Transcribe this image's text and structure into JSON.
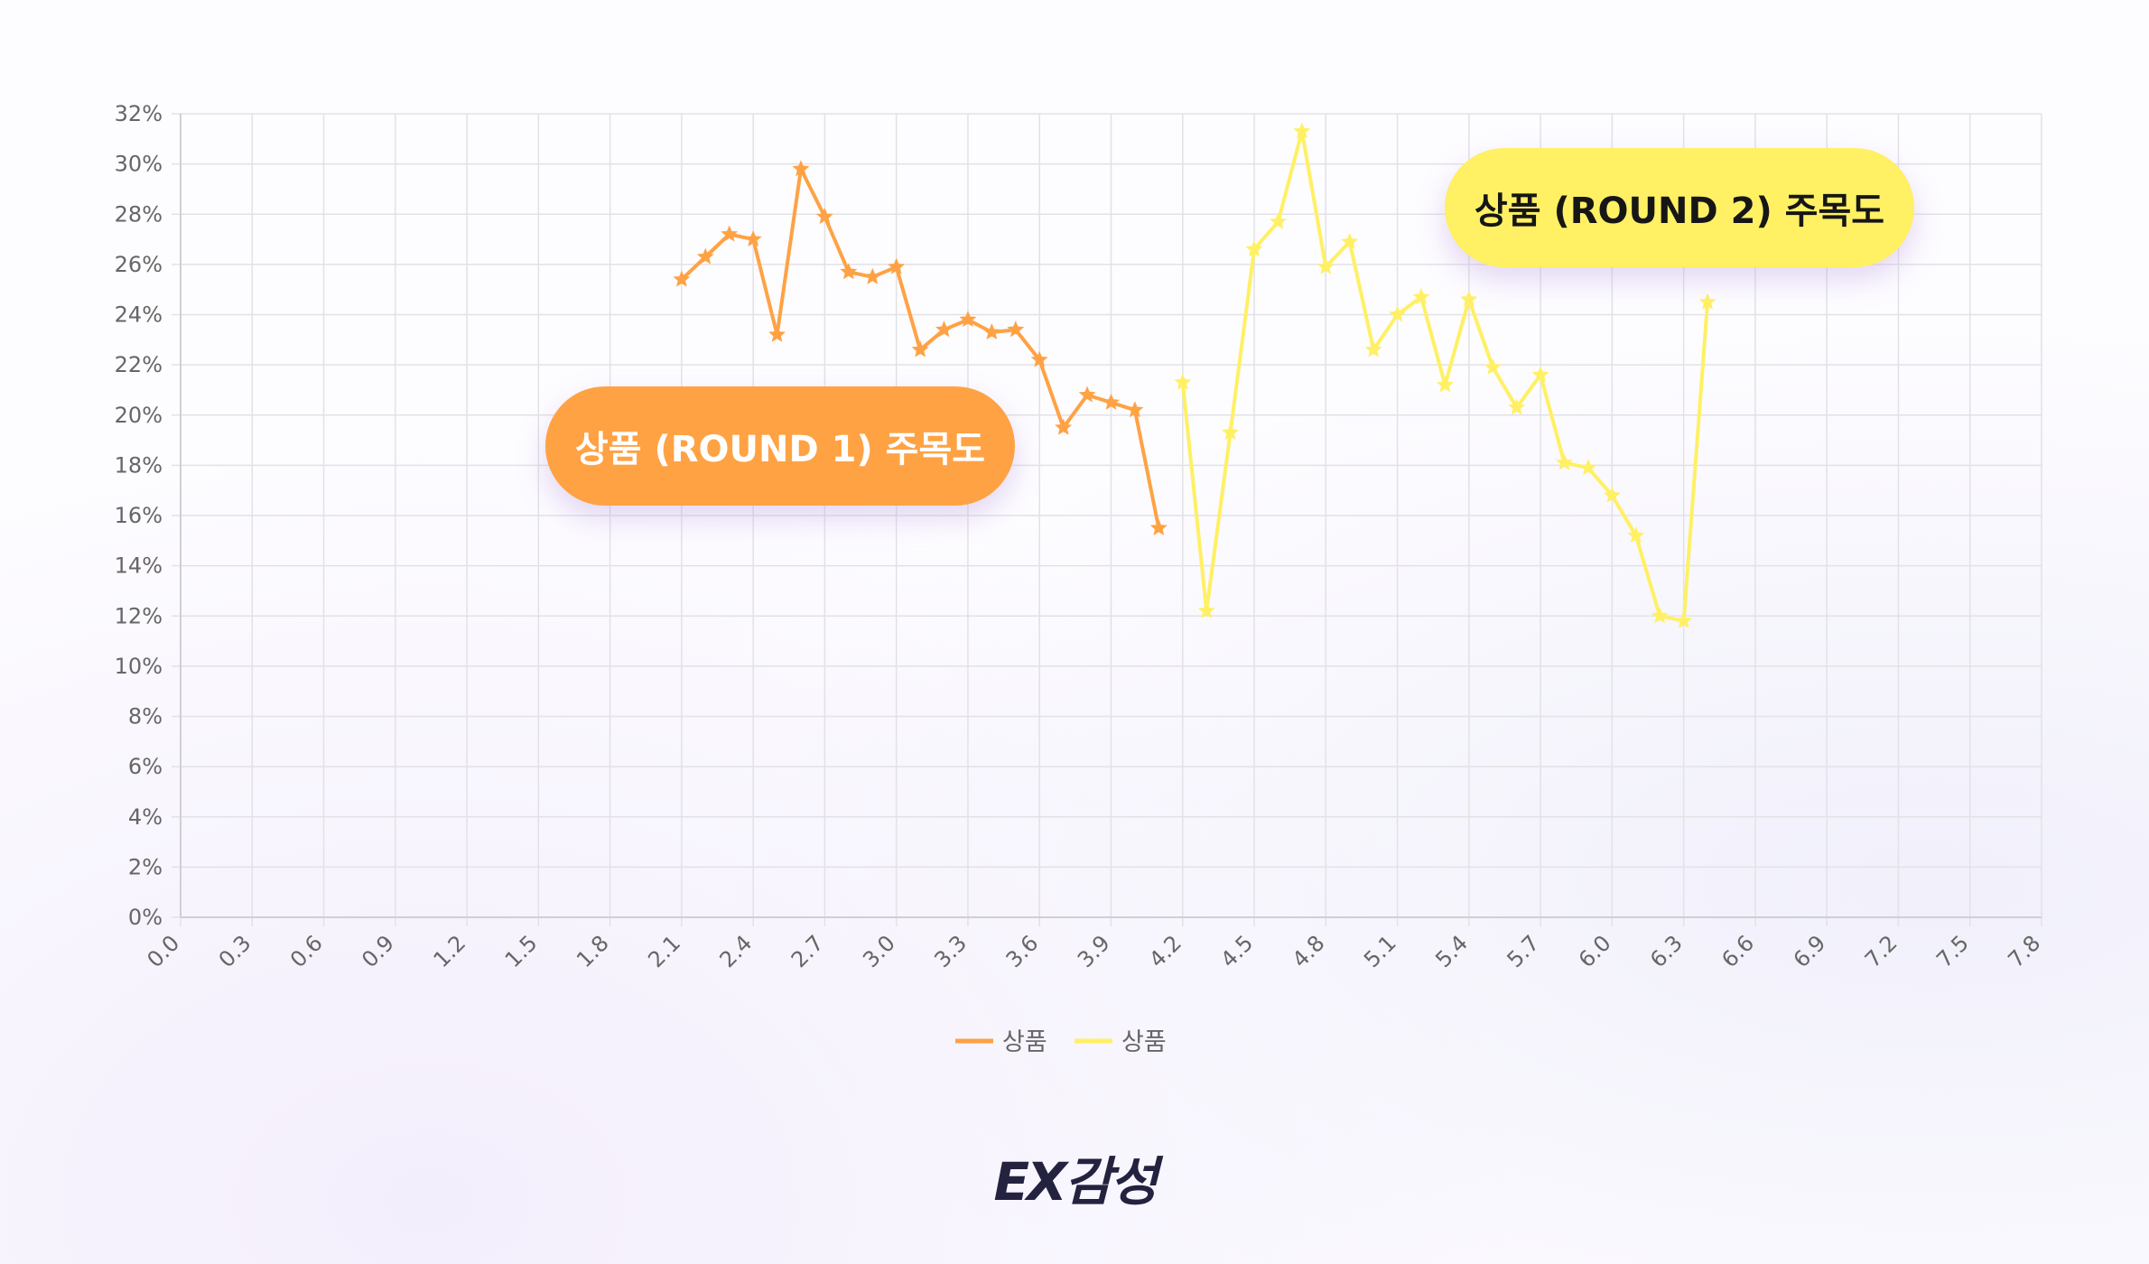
{
  "chart_data": {
    "type": "line",
    "xlim": [
      0,
      7.8
    ],
    "ylim": [
      0,
      32
    ],
    "x_ticks": [
      "0.0",
      "0.3",
      "0.6",
      "0.9",
      "1.2",
      "1.5",
      "1.8",
      "2.1",
      "2.4",
      "2.7",
      "3.0",
      "3.3",
      "3.6",
      "3.9",
      "4.2",
      "4.5",
      "4.8",
      "5.1",
      "5.4",
      "5.7",
      "6.0",
      "6.3",
      "6.6",
      "6.9",
      "7.2",
      "7.5",
      "7.8"
    ],
    "y_ticks": [
      "0%",
      "2%",
      "4%",
      "6%",
      "8%",
      "10%",
      "12%",
      "14%",
      "16%",
      "18%",
      "20%",
      "22%",
      "24%",
      "26%",
      "28%",
      "30%",
      "32%"
    ],
    "grid": true,
    "legend_position": "bottom",
    "series": [
      {
        "name": "상품",
        "color": "#ffa244",
        "x": [
          2.1,
          2.2,
          2.3,
          2.4,
          2.5,
          2.6,
          2.7,
          2.8,
          2.9,
          3.0,
          3.1,
          3.2,
          3.3,
          3.4,
          3.5,
          3.6,
          3.7,
          3.8,
          3.9,
          4.0,
          4.1
        ],
        "y": [
          25.4,
          26.3,
          27.2,
          27.0,
          23.2,
          29.8,
          27.9,
          25.7,
          25.5,
          25.9,
          22.6,
          23.4,
          23.8,
          23.3,
          23.4,
          22.2,
          19.5,
          20.8,
          20.5,
          20.2,
          15.5
        ]
      },
      {
        "name": "상품",
        "color": "#fff064",
        "x": [
          4.2,
          4.3,
          4.4,
          4.5,
          4.6,
          4.7,
          4.8,
          4.9,
          5.0,
          5.1,
          5.2,
          5.3,
          5.4,
          5.5,
          5.6,
          5.7,
          5.8,
          5.9,
          6.0,
          6.1,
          6.2,
          6.3,
          6.4
        ],
        "y": [
          21.3,
          12.2,
          19.3,
          26.6,
          27.7,
          31.3,
          25.9,
          26.9,
          22.6,
          24.0,
          24.7,
          21.2,
          24.6,
          21.9,
          20.3,
          21.6,
          18.1,
          17.9,
          16.8,
          15.2,
          12.0,
          11.8,
          24.5
        ]
      }
    ],
    "annotations": [
      {
        "text": "상품 (ROUND 1) 주목도",
        "color": "#ffa244",
        "text_color": "#ffffff"
      },
      {
        "text": "상품 (ROUND 2) 주목도",
        "color": "#fff064",
        "text_color": "#161616"
      }
    ]
  },
  "brand": "EX감성"
}
